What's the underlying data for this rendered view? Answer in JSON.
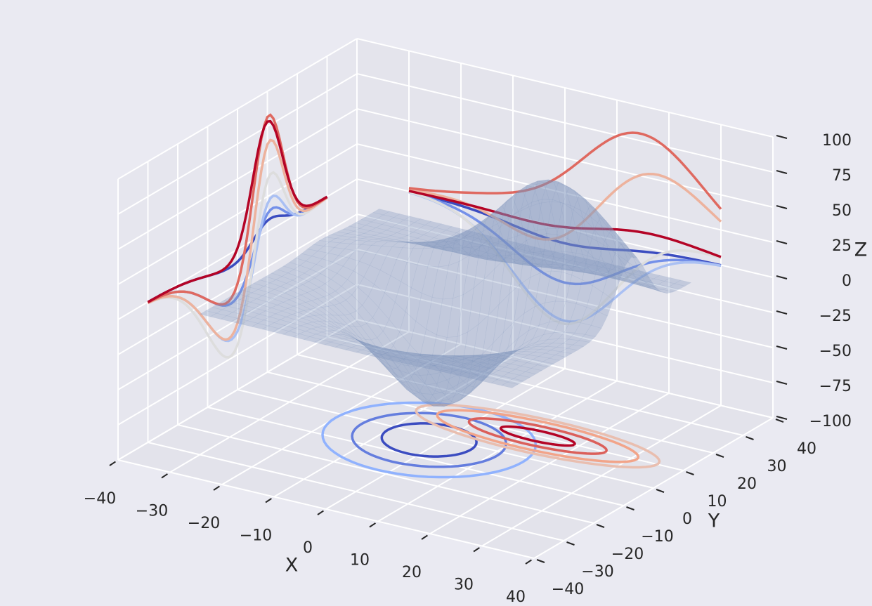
{
  "chart_data": {
    "type": "surface3d",
    "xlabel": "X",
    "ylabel": "Y",
    "zlabel": "Z",
    "xlim": [
      -40,
      40
    ],
    "ylim": [
      -40,
      40
    ],
    "zlim": [
      -100,
      100
    ],
    "xticks": [
      {
        "value": -40,
        "label": "−40"
      },
      {
        "value": -30,
        "label": "−30"
      },
      {
        "value": -20,
        "label": "−20"
      },
      {
        "value": -10,
        "label": "−10"
      },
      0,
      10,
      20,
      30,
      40
    ],
    "yticks": [
      {
        "value": -40,
        "label": "−40"
      },
      {
        "value": -30,
        "label": "−30"
      },
      {
        "value": -20,
        "label": "−20"
      },
      {
        "value": -10,
        "label": "−10"
      },
      0,
      10,
      20,
      30,
      40
    ],
    "zticks": [
      {
        "value": -100,
        "label": "−100"
      },
      {
        "value": -75,
        "label": "−75"
      },
      {
        "value": -50,
        "label": "−50"
      },
      {
        "value": -25,
        "label": "−25"
      },
      0,
      25,
      50,
      75,
      100
    ],
    "grid": true
  }
}
